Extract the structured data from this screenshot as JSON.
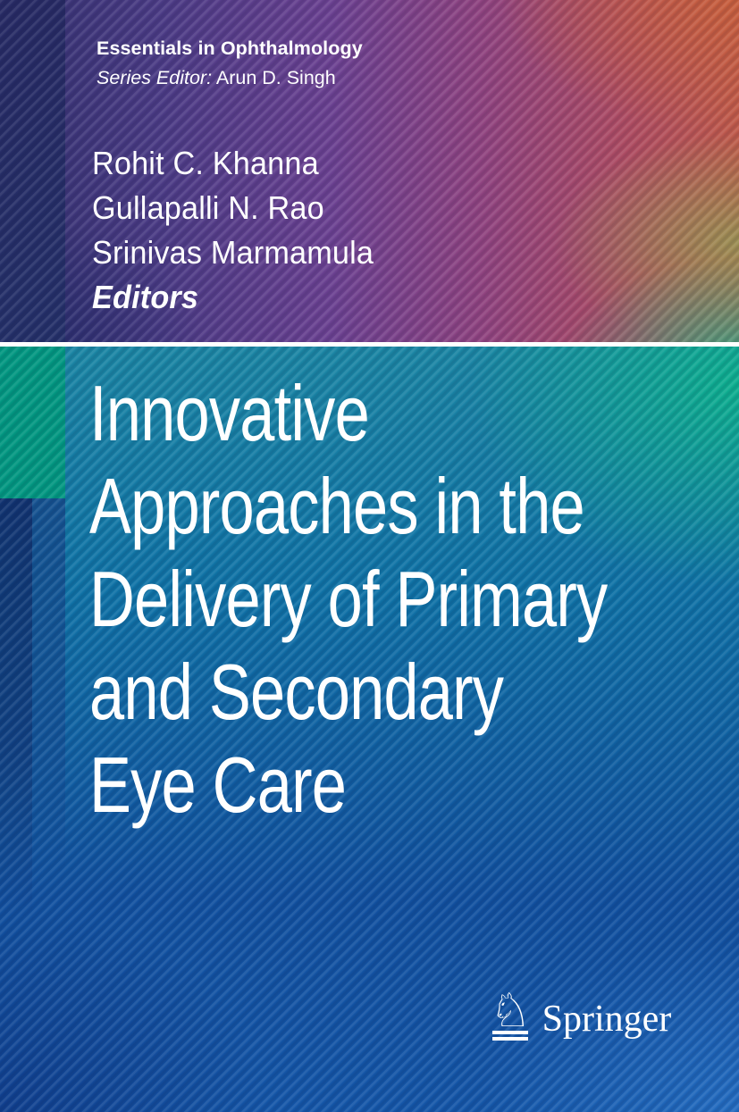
{
  "cover": {
    "series": {
      "title": "Essentials in Ophthalmology",
      "editor_label": "Series Editor:",
      "editor_name": "Arun D. Singh"
    },
    "editors": {
      "names": [
        "Rohit C. Khanna",
        "Gullapalli N. Rao",
        "Srinivas Marmamula"
      ],
      "role_label": "Editors"
    },
    "title_lines": [
      "Innovative",
      "Approaches in the",
      "Delivery of Primary",
      "and Secondary",
      "Eye Care"
    ],
    "publisher": {
      "wordmark": "Springer",
      "logo_icon": "springer-knight-horse-icon",
      "knight_glyph": "♘"
    },
    "colors": {
      "accent_teal_block": "#029781",
      "white_rule": "#ffffff",
      "top_left_navy": "#272a64",
      "top_right_red": "#c05a4a",
      "right_olive": "#969655",
      "mid_teal": "#0db28e",
      "bottom_blue": "#1456a8",
      "text": "#ffffff"
    }
  }
}
